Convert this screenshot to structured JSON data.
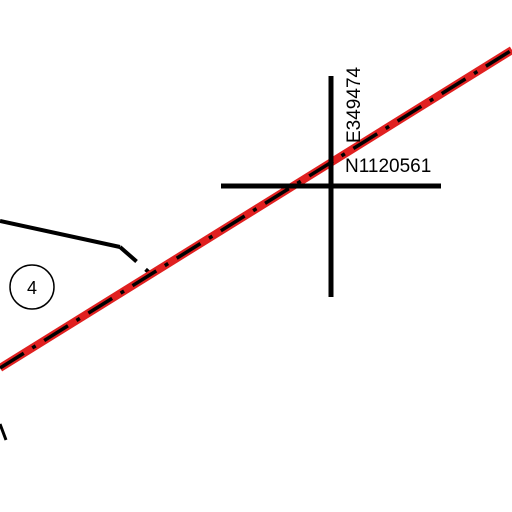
{
  "map": {
    "grid_point": {
      "easting_label": "E349474",
      "northing_label": "N1120561"
    },
    "parcel": {
      "number": "4"
    },
    "colors": {
      "background": "#ffffff",
      "linework": "#000000",
      "boundary_highlight": "#e02020"
    }
  }
}
